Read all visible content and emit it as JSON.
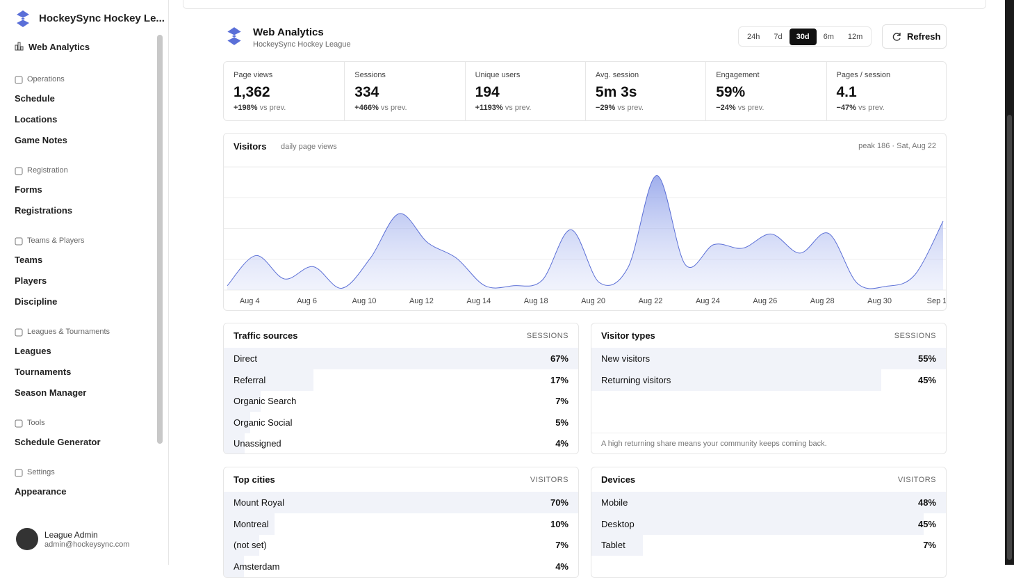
{
  "sidebar": {
    "brand": "HockeySync Hockey Le...",
    "top_item": "Web Analytics",
    "sections": [
      {
        "title": "Operations",
        "items": [
          "Schedule",
          "Locations",
          "Game Notes"
        ]
      },
      {
        "title": "Registration",
        "items": [
          "Forms",
          "Registrations"
        ]
      },
      {
        "title": "Teams & Players",
        "items": [
          "Teams",
          "Players",
          "Discipline"
        ]
      },
      {
        "title": "Leagues & Tournaments",
        "items": [
          "Leagues",
          "Tournaments",
          "Season Manager"
        ]
      },
      {
        "title": "Tools",
        "items": [
          "Schedule Generator"
        ]
      },
      {
        "title": "Settings",
        "items": [
          "Appearance"
        ]
      }
    ],
    "user": {
      "name": "League Admin",
      "email": "admin@hockeysync.com"
    }
  },
  "header": {
    "title": "Web Analytics",
    "subtitle": "HockeySync Hockey League",
    "ranges": [
      "24h",
      "7d",
      "30d",
      "6m",
      "12m"
    ],
    "active_range": "30d",
    "refresh": "Refresh"
  },
  "metrics": [
    {
      "label": "Page views",
      "value": "1,362",
      "change": "+198%",
      "suffix": "vs prev."
    },
    {
      "label": "Sessions",
      "value": "334",
      "change": "+466%",
      "suffix": "vs prev."
    },
    {
      "label": "Unique users",
      "value": "194",
      "change": "+1193%",
      "suffix": "vs prev."
    },
    {
      "label": "Avg. session",
      "value": "5m 3s",
      "change": "−29%",
      "suffix": "vs prev."
    },
    {
      "label": "Engagement",
      "value": "59%",
      "change": "−24%",
      "suffix": "vs prev."
    },
    {
      "label": "Pages / session",
      "value": "4.1",
      "change": "−47%",
      "suffix": "vs prev."
    }
  ],
  "chart_data": {
    "type": "area",
    "title": "Visitors",
    "subtitle": "daily page views",
    "peak_note": "peak 186 · Sat, Aug 22",
    "categories": [
      null,
      "Aug 4",
      null,
      "Aug 6",
      null,
      "Aug 10",
      null,
      "Aug 12",
      null,
      "Aug 14",
      null,
      "Aug 18",
      null,
      "Aug 20",
      null,
      "Aug 22",
      null,
      "Aug 24",
      null,
      "Aug 26",
      null,
      "Aug 28",
      null,
      "Aug 30",
      null,
      "Sep 1"
    ],
    "values": [
      7,
      56,
      18,
      38,
      3,
      52,
      124,
      77,
      52,
      7,
      7,
      16,
      98,
      12,
      37,
      186,
      41,
      74,
      68,
      91,
      60,
      92,
      11,
      6,
      24,
      112
    ],
    "color": "#5b6fd6",
    "ylim": [
      0,
      200
    ],
    "yticks": [
      0,
      50,
      100,
      150,
      200
    ],
    "grid": true
  },
  "panels": [
    {
      "title": "Traffic sources",
      "unit": "SESSIONS",
      "rows": [
        {
          "name": "Direct",
          "value": 67,
          "label": "67%"
        },
        {
          "name": "Referral",
          "value": 17,
          "label": "17%"
        },
        {
          "name": "Organic Search",
          "value": 7,
          "label": "7%"
        },
        {
          "name": "Organic Social",
          "value": 5,
          "label": "5%"
        },
        {
          "name": "Unassigned",
          "value": 4,
          "label": "4%"
        }
      ]
    },
    {
      "title": "Visitor types",
      "unit": "SESSIONS",
      "rows": [
        {
          "name": "New visitors",
          "value": 55,
          "label": "55%"
        },
        {
          "name": "Returning visitors",
          "value": 45,
          "label": "45%"
        }
      ],
      "note": "A high returning share means your community keeps coming back."
    },
    {
      "title": "Top cities",
      "unit": "VISITORS",
      "rows": [
        {
          "name": "Mount Royal",
          "value": 70,
          "label": "70%"
        },
        {
          "name": "Montreal",
          "value": 10,
          "label": "10%"
        },
        {
          "name": "(not set)",
          "value": 7,
          "label": "7%"
        },
        {
          "name": "Amsterdam",
          "value": 4,
          "label": "4%"
        }
      ]
    },
    {
      "title": "Devices",
      "unit": "VISITORS",
      "rows": [
        {
          "name": "Mobile",
          "value": 48,
          "label": "48%"
        },
        {
          "name": "Desktop",
          "value": 45,
          "label": "45%"
        },
        {
          "name": "Tablet",
          "value": 7,
          "label": "7%"
        }
      ]
    }
  ]
}
